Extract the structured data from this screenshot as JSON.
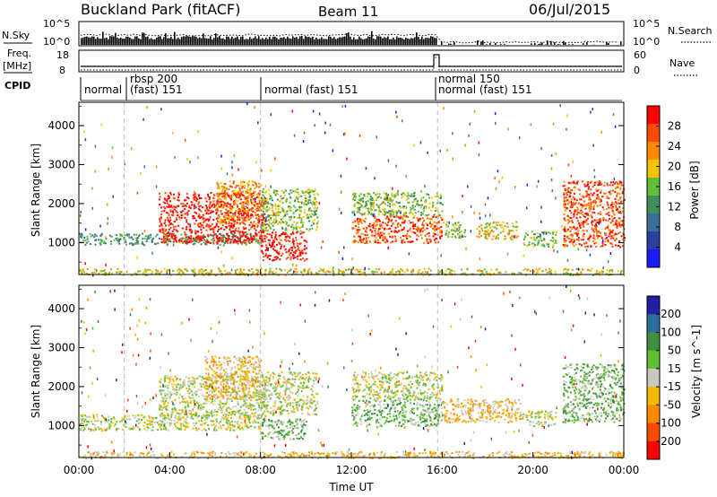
{
  "header": {
    "site": "Buckland Park (fitACF)",
    "beam": "Beam 11",
    "date": "06/Jul/2015"
  },
  "noise_panel": {
    "left_label": "N.Sky",
    "right_label": "N.Search",
    "left_ticks": [
      "10^5",
      "10^0"
    ],
    "right_ticks": [
      "10^5",
      "10^0"
    ]
  },
  "freq_panel": {
    "left_label_1": "Freq.",
    "left_label_2": "[MHz]",
    "right_label": "Nave",
    "left_ticks": [
      "18",
      "8"
    ],
    "right_ticks": [
      "60",
      "0"
    ]
  },
  "cpid": {
    "label": "CPID",
    "segments": [
      {
        "text": "normal",
        "line2": ""
      },
      {
        "text": "rbsp 200",
        "line2": "(fast) 151"
      },
      {
        "text": "normal (fast) 151",
        "line2": ""
      },
      {
        "text": "normal 150",
        "line2": "normal (fast) 151"
      }
    ]
  },
  "colors": {
    "power_scale": [
      "#1a1aff",
      "#2a3f9f",
      "#3a6f9a",
      "#3f8f5a",
      "#5fbf3a",
      "#f5c400",
      "#ff8a00",
      "#ff4a00",
      "#ff0000"
    ],
    "velocity_scale": [
      "#2020a0",
      "#2a6fa0",
      "#3f8f3f",
      "#60c030",
      "#c8c8c0",
      "#f5b800",
      "#ff8a00",
      "#ff4a00",
      "#ff0000"
    ]
  },
  "chart_data": [
    {
      "type": "heatmap",
      "name": "power",
      "ylabel": "Slant Range [km]",
      "y_ticks": [
        "1000",
        "2000",
        "3000",
        "4000"
      ],
      "ylim": [
        180,
        4600
      ],
      "xlim": [
        0,
        24
      ],
      "colorbar_label": "Power [dB]",
      "colorbar_ticks": [
        "4",
        "8",
        "12",
        "16",
        "20",
        "24",
        "28"
      ],
      "blobs": [
        {
          "t0": 0.0,
          "t1": 8.0,
          "r0": 950,
          "r1": 1250,
          "level": 3
        },
        {
          "t0": 3.5,
          "t1": 8.2,
          "r0": 1000,
          "r1": 2300,
          "level": 8
        },
        {
          "t0": 6.0,
          "t1": 8.0,
          "r0": 1500,
          "r1": 2600,
          "level": 6
        },
        {
          "t0": 8.0,
          "t1": 10.0,
          "r0": 550,
          "r1": 1300,
          "level": 8
        },
        {
          "t0": 8.0,
          "t1": 10.5,
          "r0": 1300,
          "r1": 2400,
          "level": 4
        },
        {
          "t0": 12.0,
          "t1": 16.0,
          "r0": 1000,
          "r1": 1700,
          "level": 7
        },
        {
          "t0": 12.0,
          "t1": 16.0,
          "r0": 1700,
          "r1": 2300,
          "level": 4
        },
        {
          "t0": 16.0,
          "t1": 17.0,
          "r0": 1150,
          "r1": 1550,
          "level": 4
        },
        {
          "t0": 17.5,
          "t1": 19.3,
          "r0": 1100,
          "r1": 1550,
          "level": 5
        },
        {
          "t0": 19.5,
          "t1": 21.0,
          "r0": 900,
          "r1": 1300,
          "level": 4
        },
        {
          "t0": 21.3,
          "t1": 24.0,
          "r0": 900,
          "r1": 2600,
          "level": 7
        },
        {
          "t0": 0.0,
          "t1": 24.0,
          "r0": 180,
          "r1": 350,
          "level": 5
        }
      ]
    },
    {
      "type": "heatmap",
      "name": "velocity",
      "ylabel": "Slant Range [km]",
      "xlabel": "Time UT",
      "y_ticks": [
        "1000",
        "2000",
        "3000",
        "4000"
      ],
      "x_ticks": [
        "00:00",
        "04:00",
        "08:00",
        "12:00",
        "16:00",
        "20:00",
        "00:00"
      ],
      "ylim": [
        180,
        4600
      ],
      "xlim": [
        0,
        24
      ],
      "colorbar_label": "Velocity [m s^-1]",
      "colorbar_ticks": [
        "200",
        "100",
        "50",
        "15",
        "-15",
        "-50",
        "-100",
        "-200"
      ],
      "blobs": [
        {
          "t0": 0.0,
          "t1": 8.0,
          "r0": 900,
          "r1": 1300,
          "level": 4
        },
        {
          "t0": 3.5,
          "t1": 8.2,
          "r0": 1200,
          "r1": 2300,
          "level": 4
        },
        {
          "t0": 5.5,
          "t1": 8.0,
          "r0": 1700,
          "r1": 2800,
          "level": 5
        },
        {
          "t0": 8.0,
          "t1": 10.0,
          "r0": 650,
          "r1": 1200,
          "level": 3
        },
        {
          "t0": 8.0,
          "t1": 10.5,
          "r0": 1300,
          "r1": 2400,
          "level": 4
        },
        {
          "t0": 12.0,
          "t1": 16.0,
          "r0": 1000,
          "r1": 1700,
          "level": 3
        },
        {
          "t0": 12.0,
          "t1": 16.0,
          "r0": 1700,
          "r1": 2400,
          "level": 4
        },
        {
          "t0": 16.0,
          "t1": 19.5,
          "r0": 1100,
          "r1": 1700,
          "level": 5
        },
        {
          "t0": 19.5,
          "t1": 21.0,
          "r0": 1000,
          "r1": 1400,
          "level": 4
        },
        {
          "t0": 21.3,
          "t1": 24.0,
          "r0": 1100,
          "r1": 2600,
          "level": 3
        },
        {
          "t0": 0.0,
          "t1": 24.0,
          "r0": 180,
          "r1": 350,
          "level": 5
        }
      ]
    }
  ]
}
